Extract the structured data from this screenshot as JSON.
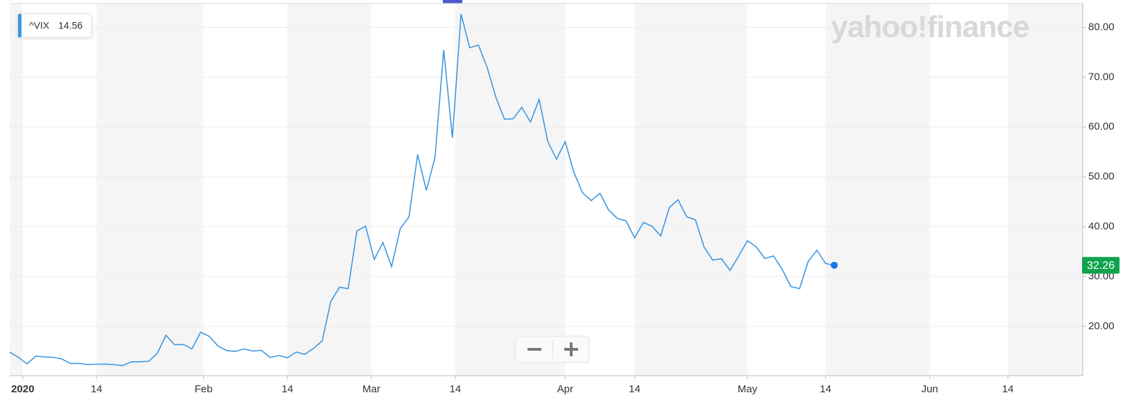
{
  "chart_data": {
    "type": "line",
    "watermark": "yahoo!finance",
    "x": [
      "2019-12-30",
      "2019-12-31",
      "2020-01-02",
      "2020-01-03",
      "2020-01-06",
      "2020-01-07",
      "2020-01-08",
      "2020-01-09",
      "2020-01-10",
      "2020-01-13",
      "2020-01-14",
      "2020-01-15",
      "2020-01-16",
      "2020-01-17",
      "2020-01-21",
      "2020-01-22",
      "2020-01-23",
      "2020-01-24",
      "2020-01-27",
      "2020-01-28",
      "2020-01-29",
      "2020-01-30",
      "2020-01-31",
      "2020-02-03",
      "2020-02-04",
      "2020-02-05",
      "2020-02-06",
      "2020-02-07",
      "2020-02-10",
      "2020-02-11",
      "2020-02-12",
      "2020-02-13",
      "2020-02-14",
      "2020-02-18",
      "2020-02-19",
      "2020-02-20",
      "2020-02-21",
      "2020-02-24",
      "2020-02-25",
      "2020-02-26",
      "2020-02-27",
      "2020-02-28",
      "2020-03-02",
      "2020-03-03",
      "2020-03-04",
      "2020-03-05",
      "2020-03-06",
      "2020-03-09",
      "2020-03-10",
      "2020-03-11",
      "2020-03-12",
      "2020-03-13",
      "2020-03-16",
      "2020-03-17",
      "2020-03-18",
      "2020-03-19",
      "2020-03-20",
      "2020-03-23",
      "2020-03-24",
      "2020-03-25",
      "2020-03-26",
      "2020-03-27",
      "2020-03-30",
      "2020-03-31",
      "2020-04-01",
      "2020-04-02",
      "2020-04-03",
      "2020-04-06",
      "2020-04-07",
      "2020-04-08",
      "2020-04-09",
      "2020-04-13",
      "2020-04-14",
      "2020-04-15",
      "2020-04-16",
      "2020-04-17",
      "2020-04-20",
      "2020-04-21",
      "2020-04-22",
      "2020-04-23",
      "2020-04-24",
      "2020-04-27",
      "2020-04-28",
      "2020-04-29",
      "2020-04-30",
      "2020-05-01",
      "2020-05-04",
      "2020-05-05",
      "2020-05-06",
      "2020-05-07",
      "2020-05-08",
      "2020-05-11",
      "2020-05-12",
      "2020-05-13",
      "2020-05-14",
      "2020-05-15"
    ],
    "series": [
      {
        "name": "^VIX",
        "legend_value": 14.56,
        "color": "#3b97e3",
        "values": [
          14.82,
          13.78,
          12.47,
          14.02,
          13.85,
          13.79,
          13.45,
          12.54,
          12.56,
          12.32,
          12.39,
          12.42,
          12.32,
          12.1,
          12.85,
          12.91,
          12.98,
          14.56,
          18.23,
          16.28,
          16.39,
          15.49,
          18.84,
          17.97,
          16.05,
          15.15,
          14.96,
          15.47,
          15.04,
          15.18,
          13.74,
          14.15,
          13.68,
          14.83,
          14.38,
          15.56,
          17.08,
          25.03,
          27.85,
          27.56,
          39.16,
          40.11,
          33.42,
          36.82,
          31.99,
          39.62,
          41.94,
          54.46,
          47.3,
          53.9,
          75.47,
          57.83,
          82.69,
          75.91,
          76.45,
          72.0,
          66.04,
          61.59,
          61.67,
          63.95,
          61.0,
          65.54,
          57.08,
          53.54,
          57.06,
          50.91,
          46.8,
          45.24,
          46.7,
          43.35,
          41.67,
          41.17,
          37.76,
          40.84,
          40.11,
          38.15,
          43.83,
          45.41,
          41.98,
          41.38,
          35.93,
          33.29,
          33.57,
          31.23,
          34.15,
          37.19,
          35.97,
          33.61,
          34.12,
          31.44,
          27.98,
          27.57,
          33.04,
          35.28,
          32.61,
          32.26
        ]
      }
    ],
    "ylim": [
      10.1,
      84.8
    ],
    "yticks": [
      {
        "value": 20,
        "label": "20.00"
      },
      {
        "value": 30,
        "label": "30.00"
      },
      {
        "value": 40,
        "label": "40.00"
      },
      {
        "value": 50,
        "label": "50.00"
      },
      {
        "value": 60,
        "label": "60.00"
      },
      {
        "value": 70,
        "label": "70.00"
      },
      {
        "value": 80,
        "label": "80.00"
      }
    ],
    "xticks": [
      {
        "value": "2020-01-01",
        "label": "2020"
      },
      {
        "value": "2020-01-14",
        "label": "14"
      },
      {
        "value": "2020-02-01",
        "label": "Feb"
      },
      {
        "value": "2020-02-14",
        "label": "14"
      },
      {
        "value": "2020-03-01",
        "label": "Mar"
      },
      {
        "value": "2020-03-14",
        "label": "14"
      },
      {
        "value": "2020-04-01",
        "label": "Apr"
      },
      {
        "value": "2020-04-14",
        "label": "14"
      },
      {
        "value": "2020-05-01",
        "label": "May"
      },
      {
        "value": "2020-05-14",
        "label": "14"
      },
      {
        "value": "2020-06-01",
        "label": "Jun"
      },
      {
        "value": "2020-06-14",
        "label": "14"
      }
    ],
    "grid": true
  }
}
